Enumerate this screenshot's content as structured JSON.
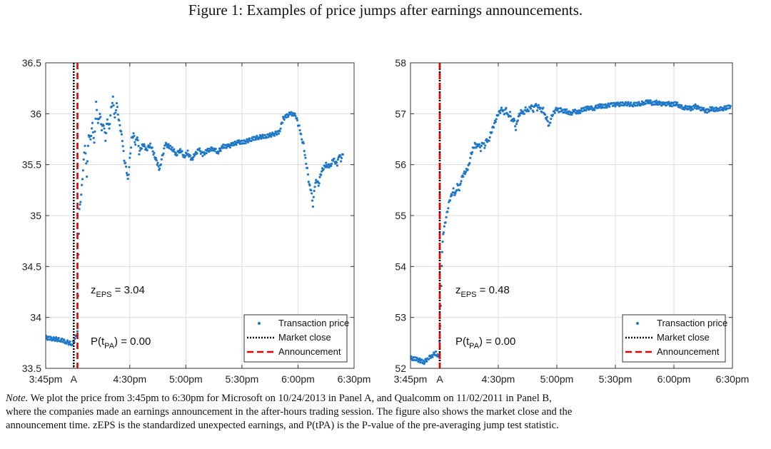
{
  "figure_title": "Figure 1: Examples of price jumps after earnings announcements.",
  "note": {
    "lead": "Note.",
    "line1": "We plot the price from 3:45pm to 6:30pm for Microsoft on 10/24/2013 in Panel A, and Qualcomm on 11/02/2011 in Panel B,",
    "line2": "where the companies made an earnings announcement in the after-hours trading session. The figure also shows the market close and the",
    "line3": "announcement time. zEPS is the standardized unexpected earnings, and P(tPA) is the P-value of the pre-averaging jump test statistic."
  },
  "colors": {
    "price": "#1f77c8",
    "market_close": "#000000",
    "announcement": "#e00000",
    "grid": "#dcdcdc"
  },
  "chart_data": [
    {
      "type": "scatter",
      "panel": "A",
      "xlabel": "",
      "ylabel": "",
      "xlim": [
        0,
        165
      ],
      "ylim": [
        33.5,
        36.5
      ],
      "x_ticks": [
        {
          "v": 0,
          "label": "3:45pm"
        },
        {
          "v": 15,
          "label": "A"
        },
        {
          "v": 45,
          "label": "4:30pm"
        },
        {
          "v": 75,
          "label": "5:00pm"
        },
        {
          "v": 105,
          "label": "5:30pm"
        },
        {
          "v": 135,
          "label": "6:00pm"
        },
        {
          "v": 165,
          "label": "6:30pm"
        }
      ],
      "y_ticks": [
        33.5,
        34,
        34.5,
        35,
        35.5,
        36,
        36.5
      ],
      "grid": true,
      "market_close_x": 15,
      "announcement_x": 17,
      "annotation_z": "= 3.04",
      "annotation_p": ") = 0.00",
      "legend_position": "bottom-right",
      "legend": [
        "Transaction price",
        "Market close",
        "Announcement"
      ],
      "series": [
        {
          "name": "Transaction price",
          "points": [
            [
              0,
              33.8
            ],
            [
              4,
              33.79
            ],
            [
              8,
              33.78
            ],
            [
              11,
              33.76
            ],
            [
              14,
              33.74
            ],
            [
              15,
              33.76
            ],
            [
              17,
              33.85
            ],
            [
              17.5,
              34.6
            ],
            [
              18,
              35.05
            ],
            [
              19,
              35.2
            ],
            [
              20,
              35.45
            ],
            [
              21,
              35.7
            ],
            [
              22,
              35.4
            ],
            [
              23,
              35.8
            ],
            [
              24,
              35.75
            ],
            [
              25,
              35.9
            ],
            [
              26,
              35.7
            ],
            [
              27,
              36.1
            ],
            [
              28,
              35.9
            ],
            [
              29,
              36.0
            ],
            [
              30,
              35.85
            ],
            [
              31,
              35.9
            ],
            [
              32,
              35.75
            ],
            [
              33,
              35.95
            ],
            [
              34,
              35.85
            ],
            [
              35,
              36.05
            ],
            [
              36,
              36.15
            ],
            [
              37,
              35.95
            ],
            [
              38,
              36.1
            ],
            [
              39,
              35.95
            ],
            [
              40,
              35.85
            ],
            [
              41,
              35.75
            ],
            [
              42,
              35.55
            ],
            [
              43,
              35.48
            ],
            [
              44,
              35.35
            ],
            [
              45,
              35.55
            ],
            [
              46,
              35.75
            ],
            [
              47,
              35.8
            ],
            [
              48,
              35.7
            ],
            [
              49,
              35.78
            ],
            [
              50,
              35.62
            ],
            [
              52,
              35.7
            ],
            [
              54,
              35.65
            ],
            [
              56,
              35.7
            ],
            [
              58,
              35.6
            ],
            [
              60,
              35.5
            ],
            [
              61,
              35.45
            ],
            [
              62,
              35.55
            ],
            [
              64,
              35.7
            ],
            [
              66,
              35.68
            ],
            [
              68,
              35.65
            ],
            [
              70,
              35.6
            ],
            [
              72,
              35.65
            ],
            [
              74,
              35.58
            ],
            [
              76,
              35.62
            ],
            [
              78,
              35.55
            ],
            [
              80,
              35.6
            ],
            [
              82,
              35.65
            ],
            [
              84,
              35.6
            ],
            [
              86,
              35.63
            ],
            [
              88,
              35.65
            ],
            [
              90,
              35.66
            ],
            [
              92,
              35.62
            ],
            [
              95,
              35.68
            ],
            [
              98,
              35.68
            ],
            [
              100,
              35.7
            ],
            [
              103,
              35.72
            ],
            [
              106,
              35.72
            ],
            [
              110,
              35.75
            ],
            [
              114,
              35.77
            ],
            [
              118,
              35.78
            ],
            [
              122,
              35.8
            ],
            [
              125,
              35.82
            ],
            [
              127,
              35.95
            ],
            [
              129,
              35.98
            ],
            [
              131,
              36.0
            ],
            [
              133,
              35.99
            ],
            [
              134,
              35.97
            ],
            [
              135,
              35.9
            ],
            [
              136,
              35.85
            ],
            [
              137,
              35.75
            ],
            [
              138,
              35.7
            ],
            [
              139,
              35.55
            ],
            [
              140,
              35.45
            ],
            [
              141,
              35.3
            ],
            [
              142,
              35.25
            ],
            [
              143,
              35.1
            ],
            [
              144,
              35.3
            ],
            [
              145,
              35.35
            ],
            [
              146,
              35.3
            ],
            [
              147,
              35.4
            ],
            [
              148,
              35.45
            ],
            [
              150,
              35.5
            ],
            [
              152,
              35.48
            ],
            [
              154,
              35.55
            ],
            [
              156,
              35.5
            ],
            [
              157,
              35.6
            ],
            [
              158,
              35.55
            ],
            [
              159,
              35.6
            ]
          ]
        }
      ]
    },
    {
      "type": "scatter",
      "panel": "B",
      "xlabel": "",
      "ylabel": "",
      "xlim": [
        0,
        165
      ],
      "ylim": [
        52,
        58
      ],
      "x_ticks": [
        {
          "v": 0,
          "label": "3:45pm"
        },
        {
          "v": 15,
          "label": "A"
        },
        {
          "v": 45,
          "label": "4:30pm"
        },
        {
          "v": 75,
          "label": "5:00pm"
        },
        {
          "v": 105,
          "label": "5:30pm"
        },
        {
          "v": 135,
          "label": "6:00pm"
        },
        {
          "v": 165,
          "label": "6:30pm"
        }
      ],
      "y_ticks": [
        52,
        53,
        54,
        55,
        56,
        57,
        58
      ],
      "grid": true,
      "market_close_x": 15,
      "announcement_x": 15,
      "annotation_z": "= 0.48",
      "annotation_p": ") = 0.00",
      "legend_position": "bottom-right",
      "legend": [
        "Transaction price",
        "Market close",
        "Announcement"
      ],
      "series": [
        {
          "name": "Transaction price",
          "points": [
            [
              0,
              52.2
            ],
            [
              3,
              52.18
            ],
            [
              5,
              52.15
            ],
            [
              7,
              52.12
            ],
            [
              9,
              52.2
            ],
            [
              11,
              52.25
            ],
            [
              13,
              52.3
            ],
            [
              14.5,
              52.2
            ],
            [
              15.5,
              53.2
            ],
            [
              16,
              54.0
            ],
            [
              16.5,
              54.5
            ],
            [
              17,
              54.7
            ],
            [
              18,
              54.9
            ],
            [
              19,
              55.1
            ],
            [
              20,
              55.3
            ],
            [
              21,
              55.4
            ],
            [
              22,
              55.5
            ],
            [
              23,
              55.4
            ],
            [
              24,
              55.6
            ],
            [
              25,
              55.5
            ],
            [
              26,
              55.7
            ],
            [
              27,
              55.8
            ],
            [
              28,
              55.85
            ],
            [
              29,
              55.9
            ],
            [
              30,
              56.0
            ],
            [
              31,
              56.2
            ],
            [
              32,
              56.3
            ],
            [
              33,
              56.4
            ],
            [
              34,
              56.35
            ],
            [
              35,
              56.4
            ],
            [
              36,
              56.3
            ],
            [
              37,
              56.45
            ],
            [
              38,
              56.35
            ],
            [
              39,
              56.5
            ],
            [
              40,
              56.45
            ],
            [
              41,
              56.6
            ],
            [
              42,
              56.7
            ],
            [
              43,
              56.8
            ],
            [
              44,
              56.9
            ],
            [
              45,
              57.0
            ],
            [
              46,
              57.05
            ],
            [
              47,
              57.1
            ],
            [
              48,
              57.0
            ],
            [
              49,
              57.1
            ],
            [
              50,
              56.95
            ],
            [
              51,
              57.0
            ],
            [
              52,
              56.85
            ],
            [
              53,
              56.9
            ],
            [
              54,
              56.7
            ],
            [
              55,
              56.9
            ],
            [
              56,
              57.0
            ],
            [
              57,
              57.05
            ],
            [
              58,
              57.0
            ],
            [
              59,
              57.1
            ],
            [
              60,
              57.05
            ],
            [
              61,
              57.1
            ],
            [
              62,
              57.15
            ],
            [
              63,
              57.05
            ],
            [
              64,
              57.2
            ],
            [
              65,
              57.1
            ],
            [
              66,
              57.15
            ],
            [
              67,
              57.05
            ],
            [
              68,
              57.1
            ],
            [
              69,
              56.95
            ],
            [
              70,
              56.9
            ],
            [
              71,
              56.75
            ],
            [
              72,
              56.9
            ],
            [
              73,
              57.0
            ],
            [
              74,
              57.05
            ],
            [
              75,
              57.1
            ],
            [
              76,
              57.05
            ],
            [
              77,
              57.1
            ],
            [
              78,
              57.05
            ],
            [
              80,
              57.05
            ],
            [
              82,
              57.0
            ],
            [
              84,
              57.05
            ],
            [
              86,
              57.02
            ],
            [
              88,
              57.08
            ],
            [
              90,
              57.1
            ],
            [
              92,
              57.12
            ],
            [
              94,
              57.1
            ],
            [
              96,
              57.15
            ],
            [
              98,
              57.15
            ],
            [
              100,
              57.15
            ],
            [
              103,
              57.18
            ],
            [
              106,
              57.18
            ],
            [
              110,
              57.2
            ],
            [
              114,
              57.18
            ],
            [
              118,
              57.2
            ],
            [
              120,
              57.22
            ],
            [
              122,
              57.25
            ],
            [
              124,
              57.2
            ],
            [
              126,
              57.22
            ],
            [
              128,
              57.2
            ],
            [
              130,
              57.18
            ],
            [
              132,
              57.2
            ],
            [
              134,
              57.18
            ],
            [
              136,
              57.2
            ],
            [
              138,
              57.15
            ],
            [
              140,
              57.12
            ],
            [
              142,
              57.12
            ],
            [
              144,
              57.1
            ],
            [
              146,
              57.15
            ],
            [
              148,
              57.1
            ],
            [
              150,
              57.08
            ],
            [
              152,
              57.05
            ],
            [
              154,
              57.1
            ],
            [
              156,
              57.08
            ],
            [
              158,
              57.1
            ],
            [
              160,
              57.1
            ],
            [
              162,
              57.12
            ],
            [
              164,
              57.15
            ]
          ]
        }
      ]
    }
  ]
}
